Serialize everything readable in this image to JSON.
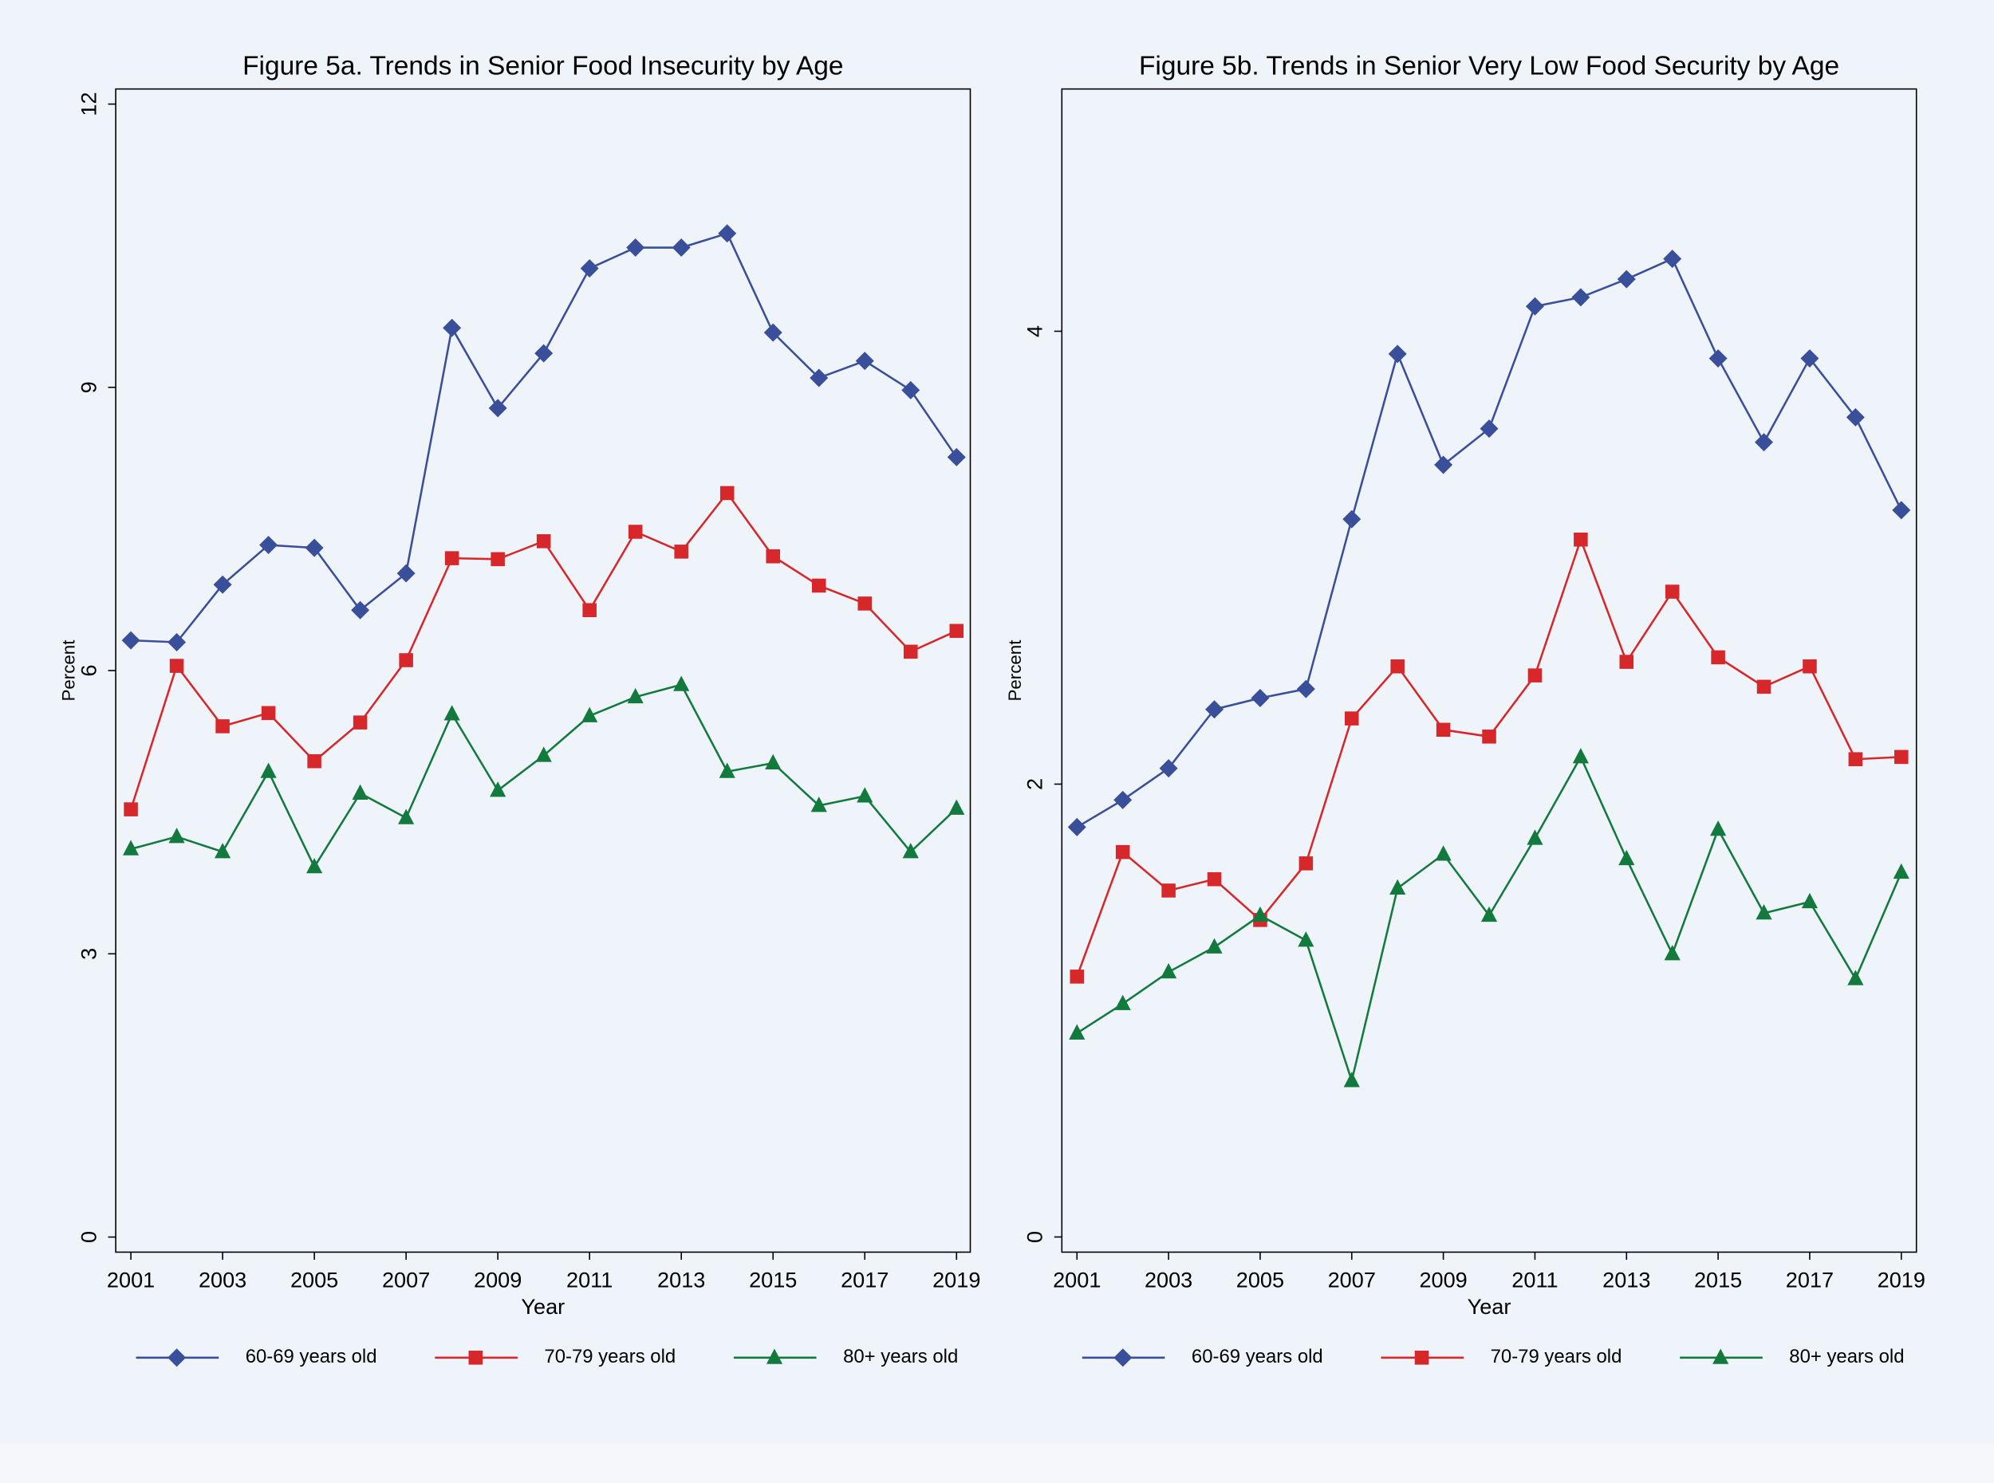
{
  "chart_data": [
    {
      "type": "line",
      "title": "Figure 5a.  Trends in Senior Food Insecurity by Age",
      "xlabel": "Year",
      "ylabel": "Percent",
      "x": [
        2001,
        2002,
        2003,
        2004,
        2005,
        2006,
        2007,
        2008,
        2009,
        2010,
        2011,
        2012,
        2013,
        2014,
        2015,
        2016,
        2017,
        2018,
        2019
      ],
      "xlim": [
        2000.67,
        2019.3
      ],
      "xticks": [
        2001,
        2003,
        2005,
        2007,
        2009,
        2011,
        2013,
        2015,
        2017,
        2019
      ],
      "ylim": [
        -0.16,
        12.16
      ],
      "yticks": [
        0,
        3,
        6,
        9,
        12
      ],
      "series": [
        {
          "name": "60-69 years old",
          "color": "#3a4f9a",
          "marker": "diamond",
          "values": [
            6.32,
            6.3,
            6.91,
            7.33,
            7.3,
            6.64,
            7.03,
            9.63,
            8.78,
            9.36,
            10.26,
            10.48,
            10.48,
            10.63,
            9.58,
            9.1,
            9.28,
            8.97,
            8.26
          ]
        },
        {
          "name": "70-79 years old",
          "color": "#d6282b",
          "marker": "square",
          "values": [
            4.53,
            6.05,
            5.41,
            5.55,
            5.04,
            5.45,
            6.11,
            7.19,
            7.18,
            7.37,
            6.64,
            7.47,
            7.26,
            7.88,
            7.21,
            6.9,
            6.71,
            6.2,
            6.42
          ]
        },
        {
          "name": "80+ years old",
          "color": "#137a3e",
          "marker": "triangle",
          "values": [
            4.11,
            4.24,
            4.08,
            4.93,
            3.92,
            4.7,
            4.44,
            5.54,
            4.73,
            5.1,
            5.52,
            5.72,
            5.85,
            4.93,
            5.02,
            4.57,
            4.67,
            4.08,
            4.54
          ]
        }
      ]
    },
    {
      "type": "line",
      "title": "Figure 5b.  Trends in Senior Very Low Food Security by Age",
      "xlabel": "Year",
      "ylabel": "Percent",
      "x": [
        2001,
        2002,
        2003,
        2004,
        2005,
        2006,
        2007,
        2008,
        2009,
        2010,
        2011,
        2012,
        2013,
        2014,
        2015,
        2016,
        2017,
        2018,
        2019
      ],
      "xlim": [
        2000.67,
        2019.33
      ],
      "xticks": [
        2001,
        2003,
        2005,
        2007,
        2009,
        2011,
        2013,
        2015,
        2017,
        2019
      ],
      "ylim": [
        -0.067,
        5.07
      ],
      "yticks": [
        0,
        2,
        4
      ],
      "series": [
        {
          "name": "60-69 years old",
          "color": "#3a4f9a",
          "marker": "diamond",
          "values": [
            1.81,
            1.93,
            2.07,
            2.33,
            2.38,
            2.42,
            3.17,
            3.9,
            3.41,
            3.57,
            4.11,
            4.15,
            4.23,
            4.32,
            3.88,
            3.51,
            3.88,
            3.62,
            3.21
          ]
        },
        {
          "name": "70-79 years old",
          "color": "#d6282b",
          "marker": "square",
          "values": [
            1.15,
            1.7,
            1.53,
            1.58,
            1.4,
            1.65,
            2.29,
            2.52,
            2.24,
            2.21,
            2.48,
            3.08,
            2.54,
            2.85,
            2.56,
            2.43,
            2.52,
            2.11,
            2.12
          ]
        },
        {
          "name": "80+ years old",
          "color": "#137a3e",
          "marker": "triangle",
          "values": [
            0.9,
            1.03,
            1.17,
            1.28,
            1.42,
            1.31,
            0.69,
            1.54,
            1.69,
            1.42,
            1.76,
            2.12,
            1.67,
            1.25,
            1.8,
            1.43,
            1.48,
            1.14,
            1.61
          ]
        }
      ]
    }
  ]
}
